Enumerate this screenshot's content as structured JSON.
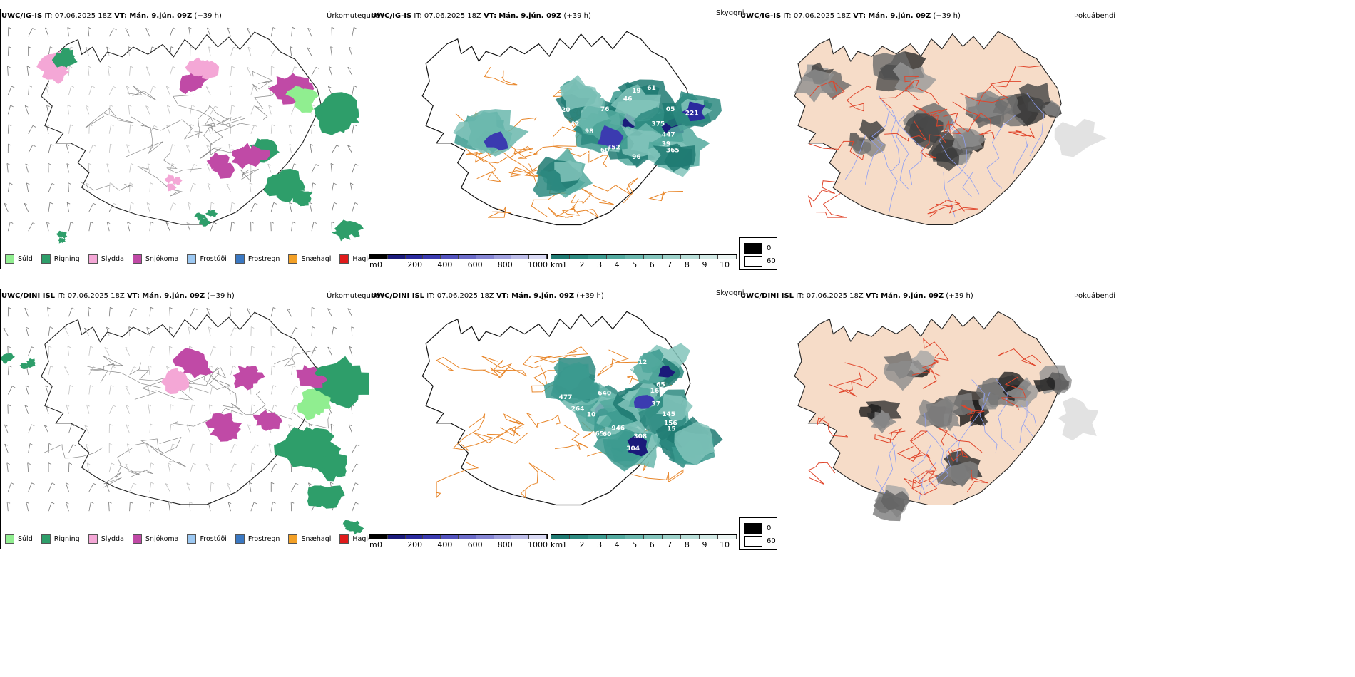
{
  "rows": [
    {
      "model": "UWC/IG-IS",
      "it_label": "IT:",
      "it_value": "07.06.2025 18Z",
      "vt_label": "VT:",
      "vt_value": "Mán. 9.jún. 09Z",
      "lead": "(+39 h)"
    },
    {
      "model": "UWC/DINI ISL",
      "it_label": "IT:",
      "it_value": "07.06.2025 18Z",
      "vt_label": "VT:",
      "vt_value": "Mán. 9.jún. 09Z",
      "lead": "(+39 h)"
    }
  ],
  "panels": {
    "precip_type": "Úrkomutegund",
    "visibility": "Skyggni",
    "fog": "Þokuábendi"
  },
  "precip_legend": [
    {
      "label": "Súld",
      "color": "#90ee90"
    },
    {
      "label": "Rigning",
      "color": "#2e9e6a"
    },
    {
      "label": "Slydda",
      "color": "#f4a7d6"
    },
    {
      "label": "Snjókoma",
      "color": "#c04aa6"
    },
    {
      "label": "Frostúði",
      "color": "#9cc8f2"
    },
    {
      "label": "Frostregn",
      "color": "#3a78c2"
    },
    {
      "label": "Snæhagl",
      "color": "#f2a027"
    },
    {
      "label": "Haglél",
      "color": "#e01b1b"
    }
  ],
  "ceiling_colorbar": {
    "unit": "m",
    "ticks": [
      "0",
      "200",
      "400",
      "600",
      "800",
      "1000"
    ],
    "colors": [
      "#000000",
      "#1a1a7a",
      "#2a2a9e",
      "#3b3bb0",
      "#5252bd",
      "#6b6bc8",
      "#8585d3",
      "#a0a0de",
      "#bcbce8",
      "#d8d8f3"
    ]
  },
  "visibility_colorbar": {
    "unit": "km",
    "ticks": [
      "1",
      "2",
      "3",
      "4",
      "5",
      "6",
      "7",
      "8",
      "9",
      "10"
    ],
    "colors": [
      "#1f7a72",
      "#2d8a80",
      "#3c9a8f",
      "#52a99e",
      "#6ab7ad",
      "#83c4bb",
      "#9dd1c9",
      "#b8ddd7",
      "#d2e9e5",
      "#ecf5f3"
    ]
  },
  "fog_legend": [
    {
      "label": "0",
      "color": "#000000"
    },
    {
      "label": "60",
      "color": "#ffffff"
    }
  ],
  "ceiling_labels_top": [
    "375",
    "447",
    "365",
    "39",
    "96",
    "276",
    "352",
    "12",
    "60",
    "98",
    "42",
    "20",
    "76",
    "14",
    "22",
    "46",
    "19",
    "61",
    "05",
    "221"
  ],
  "ceiling_labels_bottom": [
    "37",
    "145",
    "15",
    "156",
    "308",
    "304",
    "946",
    "465",
    "60",
    "10",
    "264",
    "477",
    "640",
    "163",
    "770",
    "111",
    "99",
    "12",
    "65",
    "75",
    "16"
  ],
  "colors": {
    "rain": "#2e9e6a",
    "snow": "#c04aa6",
    "sleet": "#f4a7d6",
    "drizzle": "#90ee90",
    "roads": "#e8862a",
    "land_fog": "#f6dcc8",
    "fog_roads": "#e0452b",
    "fog_rivers": "#8f9ff2"
  }
}
